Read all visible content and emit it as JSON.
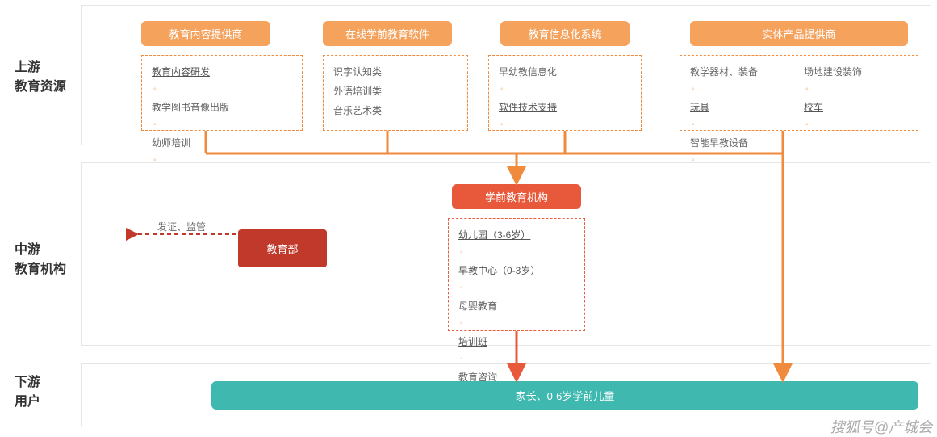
{
  "type": "flowchart",
  "background_color": "#ffffff",
  "row_border_color": "#e5e5e5",
  "colors": {
    "orange": "#f08a3c",
    "orange_fill": "#f5a25d",
    "red": "#c0392b",
    "redorange": "#e8583b",
    "teal": "#3fb8af",
    "dash_orange": "#f08a3c",
    "dash_red": "#e85c41",
    "link": "#555555"
  },
  "rows": {
    "upstream": {
      "label_line1": "上游",
      "label_line2": "教育资源"
    },
    "midstream": {
      "label_line1": "中游",
      "label_line2": "教育机构"
    },
    "downstream": {
      "label_line1": "下游",
      "label_line2": "用户"
    }
  },
  "upstream_groups": [
    {
      "header": "教育内容提供商",
      "items": [
        {
          "text": "教育内容研发",
          "link": true,
          "bullet": true
        },
        {
          "text": "教学图书音像出版",
          "link": false,
          "bullet": true
        },
        {
          "text": "幼师培训",
          "link": false,
          "bullet": true
        }
      ]
    },
    {
      "header": "在线学前教育软件",
      "items": [
        {
          "text": "识字认知类",
          "link": false,
          "bullet": false
        },
        {
          "text": "外语培训类",
          "link": false,
          "bullet": false
        },
        {
          "text": "音乐艺术类",
          "link": false,
          "bullet": false
        }
      ]
    },
    {
      "header": "教育信息化系统",
      "items": [
        {
          "text": "早幼教信息化",
          "link": false,
          "bullet": true
        },
        {
          "text": "软件技术支持",
          "link": true,
          "bullet": true
        }
      ]
    },
    {
      "header": "实体产品提供商",
      "cols": [
        [
          {
            "text": "教学器材、装备",
            "link": false,
            "bullet": true
          },
          {
            "text": "玩具",
            "link": true,
            "bullet": true
          },
          {
            "text": "智能早教设备",
            "link": false,
            "bullet": true
          }
        ],
        [
          {
            "text": "场地建设装饰",
            "link": false,
            "bullet": true
          },
          {
            "text": "校车",
            "link": true,
            "bullet": true
          }
        ]
      ]
    }
  ],
  "midstream": {
    "center_header": "学前教育机构",
    "center_items": [
      {
        "text": "幼儿园（3-6岁）",
        "link": true,
        "bullet": true
      },
      {
        "text": "早教中心（0-3岁）",
        "link": true,
        "bullet": true
      },
      {
        "text": "母婴教育",
        "link": false,
        "bullet": true
      },
      {
        "text": "培训班",
        "link": true,
        "bullet": true
      },
      {
        "text": "教育咨询",
        "link": false,
        "bullet": true
      }
    ],
    "moe_label": "教育部",
    "moe_caption": "发证、监管"
  },
  "downstream": {
    "bar_text": "家长、0-6岁学前儿童"
  },
  "watermark": "搜狐号@产城会"
}
